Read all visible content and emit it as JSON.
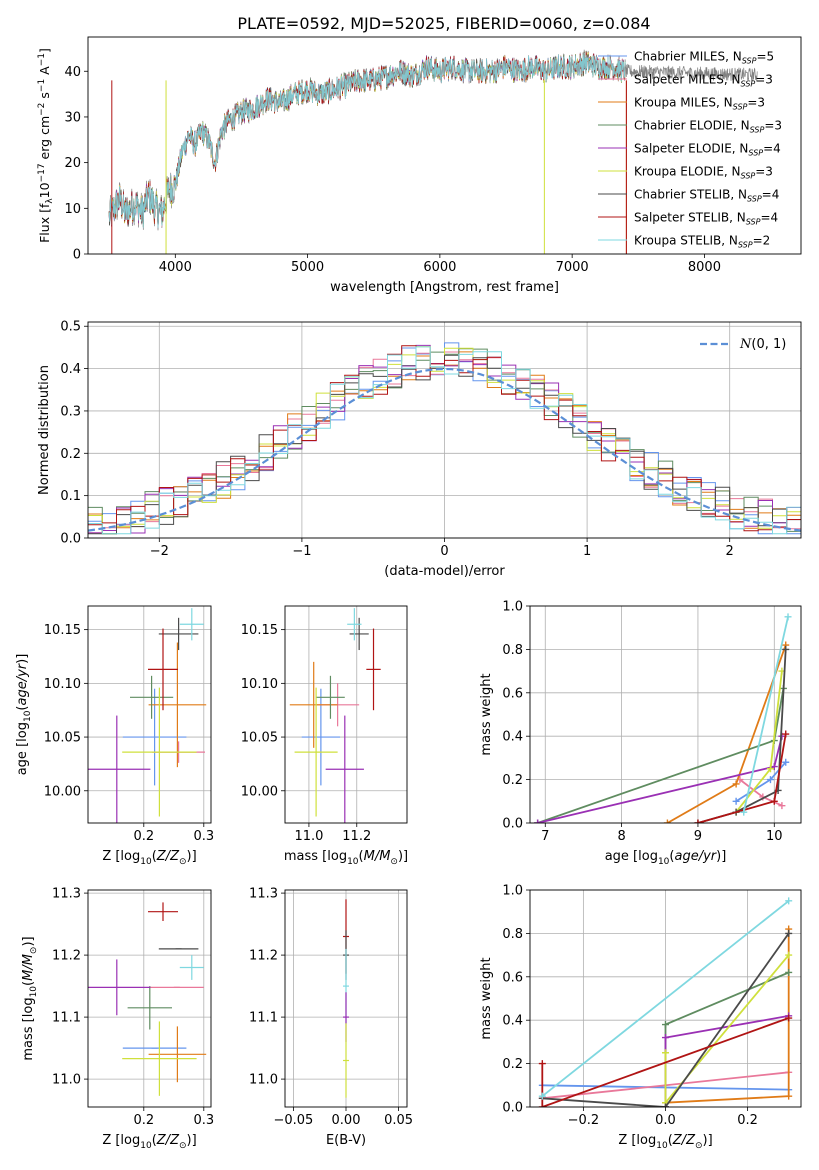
{
  "figure": {
    "title": "PLATE=0592, MJD=52025, FIBERID=0060, z=0.084"
  },
  "colors": {
    "Chabrier MILES": "#6495ed",
    "Salpeter MILES": "#e9789a",
    "Kroupa MILES": "#e07b17",
    "Chabrier ELODIE": "#5f8c60",
    "Salpeter ELODIE": "#9a30b4",
    "Kroupa ELODIE": "#cfe03c",
    "Chabrier STELIB": "#4a4a4a",
    "Salpeter STELIB": "#b01414",
    "Kroupa STELIB": "#7fd8e0"
  },
  "chart_data": [
    {
      "id": "spectrum",
      "type": "line",
      "xlabel": "wavelength [Angstrom, rest frame]",
      "ylabel": "Flux [f_λ10^-17 erg cm^-2 s^-1 A^-1]",
      "xlim": [
        3340,
        8730
      ],
      "ylim": [
        0,
        47.5
      ],
      "xticks": [
        4000,
        5000,
        6000,
        7000,
        8000
      ],
      "yticks": [
        0,
        10,
        20,
        30,
        40
      ],
      "legend_position": "upper right",
      "data_color": "#808080",
      "data_label": "",
      "anchor_x": [
        3500,
        3540,
        3580,
        3620,
        3700,
        3750,
        3800,
        3850,
        3900,
        3950,
        4000,
        4050,
        4100,
        4150,
        4200,
        4250,
        4300,
        4350,
        4400,
        4500,
        4600,
        4700,
        4800,
        4900,
        5000,
        5100,
        5200,
        5300,
        5400,
        5500,
        5600,
        5700,
        5800,
        5900,
        6000,
        6100,
        6200,
        6300,
        6400,
        6500,
        6600,
        6700,
        6800,
        6900,
        7000,
        7100,
        7200,
        7300,
        7400
      ],
      "anchor_y": [
        8,
        10,
        12,
        9,
        11,
        9,
        13,
        10,
        9,
        14,
        15,
        22,
        26,
        24,
        27,
        25,
        20,
        27,
        29,
        31,
        32,
        34,
        33,
        35,
        36,
        35,
        36,
        37,
        38,
        38,
        39,
        40,
        39,
        41,
        40,
        41,
        40,
        40,
        40,
        41,
        40,
        41,
        40,
        41,
        41,
        42,
        41,
        41,
        40
      ],
      "series": [
        {
          "name": "Chabrier MILES, N_SSP=5",
          "label_main": "Chabrier MILES, N",
          "label_sub": "SSP",
          "label_tail": "=5"
        },
        {
          "name": "Salpeter MILES, N_SSP=3",
          "label_main": "Salpeter MILES, N",
          "label_sub": "SSP",
          "label_tail": "=3"
        },
        {
          "name": "Kroupa MILES, N_SSP=3",
          "label_main": "Kroupa MILES, N",
          "label_sub": "SSP",
          "label_tail": "=3"
        },
        {
          "name": "Chabrier ELODIE, N_SSP=3",
          "label_main": "Chabrier ELODIE, N",
          "label_sub": "SSP",
          "label_tail": "=3"
        },
        {
          "name": "Salpeter ELODIE, N_SSP=4",
          "label_main": "Salpeter ELODIE, N",
          "label_sub": "SSP",
          "label_tail": "=4"
        },
        {
          "name": "Kroupa ELODIE, N_SSP=3",
          "label_main": "Kroupa ELODIE, N",
          "label_sub": "SSP",
          "label_tail": "=3"
        },
        {
          "name": "Chabrier STELIB, N_SSP=4",
          "label_main": "Chabrier STELIB, N",
          "label_sub": "SSP",
          "label_tail": "=4"
        },
        {
          "name": "Salpeter STELIB, N_SSP=4",
          "label_main": "Salpeter STELIB, N",
          "label_sub": "SSP",
          "label_tail": "=4"
        },
        {
          "name": "Kroupa STELIB, N_SSP=2",
          "label_main": "Kroupa STELIB, N",
          "label_sub": "SSP",
          "label_tail": "=2"
        }
      ]
    },
    {
      "id": "residuals",
      "type": "area",
      "xlabel": "(data-model)/error",
      "ylabel": "Normed distribution",
      "xlim": [
        -2.5,
        2.5
      ],
      "ylim": [
        0,
        0.51
      ],
      "xticks": [
        -2,
        -1,
        0,
        1,
        2
      ],
      "yticks": [
        0.0,
        0.1,
        0.2,
        0.3,
        0.4,
        0.5
      ],
      "grid": true,
      "legend_position": "upper right",
      "normal_label": "N(0,1)",
      "normal_color": "#5b8fd6",
      "bin_width": 0.1
    },
    {
      "id": "age_vs_Z",
      "type": "scatter",
      "xlabel": "Z [log10(Z/Z⊙)]",
      "ylabel": "age [log10(age/yr)]",
      "xlim": [
        0.107,
        0.312
      ],
      "ylim": [
        9.97,
        10.172
      ],
      "xticks": [
        0.2,
        0.3
      ],
      "yticks": [
        10.0,
        10.05,
        10.1,
        10.15
      ],
      "grid": true,
      "points": [
        {
          "model": "Chabrier MILES",
          "x": 0.218,
          "xerr": 0.053,
          "y": 10.05,
          "yerr": 0.045
        },
        {
          "model": "Salpeter MILES",
          "x": 0.258,
          "xerr": 0.044,
          "y": 10.036,
          "yerr": 0.01
        },
        {
          "model": "Kroupa MILES",
          "x": 0.256,
          "xerr": 0.048,
          "y": 10.08,
          "yerr": 0.058
        },
        {
          "model": "Chabrier ELODIE",
          "x": 0.213,
          "xerr": 0.036,
          "y": 10.087,
          "yerr": 0.02
        },
        {
          "model": "Salpeter ELODIE",
          "x": 0.155,
          "xerr": 0.056,
          "y": 10.02,
          "yerr": 0.05
        },
        {
          "model": "Kroupa ELODIE",
          "x": 0.226,
          "xerr": 0.062,
          "y": 10.036,
          "yerr": 0.06
        },
        {
          "model": "Chabrier STELIB",
          "x": 0.258,
          "xerr": 0.033,
          "y": 10.146,
          "yerr": 0.015
        },
        {
          "model": "Salpeter STELIB",
          "x": 0.232,
          "xerr": 0.025,
          "y": 10.113,
          "yerr": 0.038
        },
        {
          "model": "Kroupa STELIB",
          "x": 0.28,
          "xerr": 0.02,
          "y": 10.155,
          "yerr": 0.015
        }
      ]
    },
    {
      "id": "age_vs_mass",
      "type": "scatter",
      "xlabel": "mass [log10(M/M⊙)]",
      "ylabel": "",
      "xlim": [
        10.9,
        11.41
      ],
      "ylim": [
        9.97,
        10.172
      ],
      "xticks": [
        11.0,
        11.2
      ],
      "yticks": [
        10.0,
        10.05,
        10.1,
        10.15
      ],
      "grid": true,
      "points": [
        {
          "model": "Chabrier MILES",
          "x": 11.05,
          "xerr": 0.08,
          "y": 10.05,
          "yerr": 0.045
        },
        {
          "model": "Salpeter MILES",
          "x": 11.12,
          "xerr": 0.09,
          "y": 10.08,
          "yerr": 0.02
        },
        {
          "model": "Kroupa MILES",
          "x": 11.02,
          "xerr": 0.1,
          "y": 10.08,
          "yerr": 0.04
        },
        {
          "model": "Chabrier ELODIE",
          "x": 11.09,
          "xerr": 0.06,
          "y": 10.087,
          "yerr": 0.02
        },
        {
          "model": "Salpeter ELODIE",
          "x": 11.15,
          "xerr": 0.08,
          "y": 10.02,
          "yerr": 0.05
        },
        {
          "model": "Kroupa ELODIE",
          "x": 11.03,
          "xerr": 0.09,
          "y": 10.036,
          "yerr": 0.06
        },
        {
          "model": "Chabrier STELIB",
          "x": 11.21,
          "xerr": 0.04,
          "y": 10.146,
          "yerr": 0.015
        },
        {
          "model": "Salpeter STELIB",
          "x": 11.27,
          "xerr": 0.03,
          "y": 10.113,
          "yerr": 0.038
        },
        {
          "model": "Kroupa STELIB",
          "x": 11.19,
          "xerr": 0.03,
          "y": 10.155,
          "yerr": 0.015
        }
      ]
    },
    {
      "id": "weight_vs_age",
      "type": "line",
      "xlabel": "age [log10(age/yr)]",
      "ylabel": "mass weight",
      "xlim": [
        6.8,
        10.35
      ],
      "ylim": [
        0,
        1.0
      ],
      "xticks": [
        7,
        8,
        9,
        10
      ],
      "yticks": [
        0.0,
        0.2,
        0.4,
        0.6,
        0.8,
        1.0
      ],
      "grid": true,
      "series": [
        {
          "model": "Chabrier MILES",
          "x": [
            9.5,
            9.95,
            10.15
          ],
          "y": [
            0.1,
            0.2,
            0.28
          ]
        },
        {
          "model": "Salpeter MILES",
          "x": [
            9.55,
            9.85,
            10.1
          ],
          "y": [
            0.2,
            0.12,
            0.08
          ]
        },
        {
          "model": "Kroupa MILES",
          "x": [
            8.6,
            9.5,
            10.15
          ],
          "y": [
            0.0,
            0.18,
            0.82
          ]
        },
        {
          "model": "Chabrier ELODIE",
          "x": [
            6.9,
            10.0,
            10.12
          ],
          "y": [
            0.0,
            0.38,
            0.62
          ]
        },
        {
          "model": "Salpeter ELODIE",
          "x": [
            6.9,
            10.0,
            10.1
          ],
          "y": [
            0.0,
            0.26,
            0.4
          ]
        },
        {
          "model": "Kroupa ELODIE",
          "x": [
            9.5,
            9.95,
            10.1
          ],
          "y": [
            0.05,
            0.25,
            0.7
          ]
        },
        {
          "model": "Chabrier STELIB",
          "x": [
            9.0,
            9.5,
            10.05,
            10.15
          ],
          "y": [
            0.0,
            0.05,
            0.15,
            0.8
          ]
        },
        {
          "model": "Salpeter STELIB",
          "x": [
            9.0,
            10.0,
            10.15
          ],
          "y": [
            0.0,
            0.1,
            0.41
          ]
        },
        {
          "model": "Kroupa STELIB",
          "x": [
            9.6,
            10.18
          ],
          "y": [
            0.05,
            0.95
          ]
        }
      ]
    },
    {
      "id": "mass_vs_Z",
      "type": "scatter",
      "xlabel": "Z [log10(Z/Z⊙)]",
      "ylabel": "mass [log10(M/M⊙)]",
      "xlim": [
        0.107,
        0.312
      ],
      "ylim": [
        10.955,
        11.305
      ],
      "xticks": [
        0.2,
        0.3
      ],
      "yticks": [
        11.0,
        11.1,
        11.2,
        11.3
      ],
      "grid": true,
      "points": [
        {
          "model": "Chabrier MILES",
          "x": 0.218,
          "xerr": 0.053,
          "y": 11.05,
          "yerr": 0.0
        },
        {
          "model": "Salpeter MILES",
          "x": 0.255,
          "xerr": 0.045,
          "y": 11.148,
          "yerr": 0.0
        },
        {
          "model": "Kroupa MILES",
          "x": 0.256,
          "xerr": 0.048,
          "y": 11.04,
          "yerr": 0.045
        },
        {
          "model": "Chabrier ELODIE",
          "x": 0.21,
          "xerr": 0.037,
          "y": 11.115,
          "yerr": 0.035
        },
        {
          "model": "Salpeter ELODIE",
          "x": 0.155,
          "xerr": 0.056,
          "y": 11.148,
          "yerr": 0.045
        },
        {
          "model": "Kroupa ELODIE",
          "x": 0.226,
          "xerr": 0.062,
          "y": 11.033,
          "yerr": 0.06
        },
        {
          "model": "Chabrier STELIB",
          "x": 0.258,
          "xerr": 0.033,
          "y": 11.21,
          "yerr": 0.0
        },
        {
          "model": "Salpeter STELIB",
          "x": 0.232,
          "xerr": 0.025,
          "y": 11.27,
          "yerr": 0.015
        },
        {
          "model": "Kroupa STELIB",
          "x": 0.28,
          "xerr": 0.02,
          "y": 11.18,
          "yerr": 0.02
        }
      ]
    },
    {
      "id": "mass_vs_EBV",
      "type": "scatter",
      "xlabel": "E(B-V)",
      "ylabel": "",
      "xlim": [
        -0.058,
        0.058
      ],
      "ylim": [
        10.955,
        11.305
      ],
      "xticks": [
        -0.05,
        0.0,
        0.05
      ],
      "xticklabels": [
        "−0.05",
        "0.00",
        "0.05"
      ],
      "yticks": [
        11.0,
        11.1,
        11.2,
        11.3
      ],
      "grid": true,
      "points": [
        {
          "model": "Salpeter STELIB",
          "x": 0.0,
          "xerr": 0.0,
          "y": 11.23,
          "yerr": 0.06
        },
        {
          "model": "Chabrier STELIB",
          "x": 0.0,
          "xerr": 0.0,
          "y": 11.2,
          "yerr": 0.04
        },
        {
          "model": "Kroupa STELIB",
          "x": 0.0,
          "xerr": 0.0,
          "y": 11.15,
          "yerr": 0.06
        },
        {
          "model": "Salpeter ELODIE",
          "x": 0.0,
          "xerr": 0.0,
          "y": 11.1,
          "yerr": 0.04
        },
        {
          "model": "Kroupa ELODIE",
          "x": 0.0,
          "xerr": 0.0,
          "y": 11.03,
          "yerr": 0.06
        }
      ]
    },
    {
      "id": "weight_vs_Z",
      "type": "line",
      "xlabel": "Z [log10(Z/Z⊙)]",
      "ylabel": "mass weight",
      "xlim": [
        -0.33,
        0.33
      ],
      "ylim": [
        0,
        1.0
      ],
      "xticks": [
        -0.2,
        0.0,
        0.2
      ],
      "xticklabels": [
        "−0.2",
        "0.0",
        "0.2"
      ],
      "yticks": [
        0.0,
        0.2,
        0.4,
        0.6,
        0.8,
        1.0
      ],
      "grid": true,
      "series": [
        {
          "model": "Chabrier MILES",
          "x": [
            -0.3,
            0.3
          ],
          "y": [
            0.1,
            0.08
          ]
        },
        {
          "model": "Salpeter MILES",
          "x": [
            -0.3,
            0.3
          ],
          "y": [
            0.04,
            0.16
          ]
        },
        {
          "model": "Kroupa MILES",
          "x": [
            0.0,
            0.3,
            0.3
          ],
          "y": [
            0.02,
            0.05,
            0.82
          ]
        },
        {
          "model": "Chabrier ELODIE",
          "x": [
            0.0,
            0.0,
            0.3
          ],
          "y": [
            0.0,
            0.38,
            0.62
          ]
        },
        {
          "model": "Salpeter ELODIE",
          "x": [
            0.0,
            0.0,
            0.3
          ],
          "y": [
            0.0,
            0.32,
            0.42
          ]
        },
        {
          "model": "Kroupa ELODIE",
          "x": [
            0.0,
            0.0,
            0.3
          ],
          "y": [
            0.25,
            0.02,
            0.7
          ]
        },
        {
          "model": "Chabrier STELIB",
          "x": [
            -0.3,
            0.0,
            0.3
          ],
          "y": [
            0.04,
            0.0,
            0.8
          ]
        },
        {
          "model": "Salpeter STELIB",
          "x": [
            -0.3,
            -0.3,
            0.3
          ],
          "y": [
            0.2,
            0.0,
            0.41
          ]
        },
        {
          "model": "Kroupa STELIB",
          "x": [
            -0.3,
            0.3
          ],
          "y": [
            0.05,
            0.95
          ]
        }
      ]
    }
  ]
}
